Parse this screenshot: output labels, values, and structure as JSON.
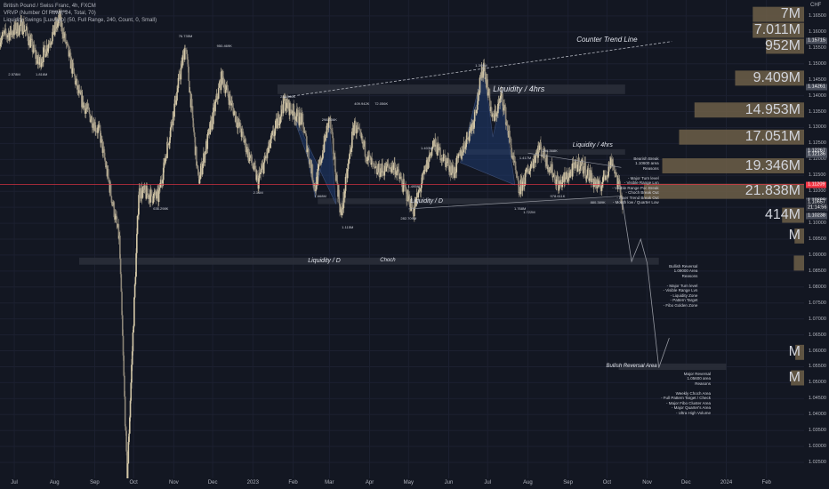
{
  "legend": {
    "title": "British Pound / Swiss Franc, 4h, FXCM",
    "indicator1": "VRVP (Number Of Rows, 24, Total, 70)",
    "indicator2": "Liquidity Swings [LuxAlgo] (50, Full Range, 240, Count, 0, Small)"
  },
  "axis": {
    "currency": "CHF",
    "ytick_labels": [
      "1.16500",
      "1.16000",
      "1.15500",
      "1.15000",
      "1.14500",
      "1.14000",
      "1.13500",
      "1.13000",
      "1.12500",
      "1.12000",
      "1.11500",
      "1.11000",
      "1.10500",
      "1.10000",
      "1.09500",
      "1.09000",
      "1.08500",
      "1.08000",
      "1.07500",
      "1.07000",
      "1.06500",
      "1.06000",
      "1.05500",
      "1.05000",
      "1.04500",
      "1.04000",
      "1.03500",
      "1.03000",
      "1.02500"
    ],
    "xtick_labels": [
      "Jul",
      "Aug",
      "Sep",
      "Oct",
      "Nov",
      "Dec",
      "2023",
      "Feb",
      "Mar",
      "Apr",
      "May",
      "Jun",
      "Jul",
      "Aug",
      "Sep",
      "Oct",
      "Nov",
      "Dec",
      "2024",
      "Feb"
    ],
    "badges": [
      {
        "text": "1.15715",
        "color": "#4a4f5c",
        "price": 1.15715
      },
      {
        "text": "1.14261",
        "color": "#4a4f5c",
        "price": 1.14261
      },
      {
        "text": "1.12267",
        "color": "#4a4f5c",
        "price": 1.12267
      },
      {
        "text": "1.12136",
        "color": "#4a4f5c",
        "price": 1.12136
      },
      {
        "text": "1.11209",
        "color": "#f23645",
        "price": 1.11209
      },
      {
        "text": "1.10690",
        "color": "#4a4f5c",
        "price": 1.1069
      },
      {
        "text": "1.10657",
        "color": "#2a2e39",
        "price": 1.10657
      },
      {
        "text": "21:14:56",
        "color": "#2a2e39",
        "price": 1.1048
      },
      {
        "text": "1.10238",
        "color": "#4a4f5c",
        "price": 1.10238
      }
    ]
  },
  "chart_data": {
    "type": "candlestick",
    "symbol": "GBPCHF",
    "timeframe": "4h",
    "ylim": [
      1.02,
      1.17
    ],
    "x_range": [
      "2022-06-20",
      "2024-03-01"
    ],
    "x_month_starts": [
      "2022-07-01",
      "2022-08-01",
      "2022-09-01",
      "2022-10-01",
      "2022-11-01",
      "2022-12-01",
      "2023-01-01",
      "2023-02-01",
      "2023-03-01",
      "2023-04-01",
      "2023-05-01",
      "2023-06-01",
      "2023-07-01",
      "2023-08-01",
      "2023-09-01",
      "2023-10-01",
      "2023-11-01",
      "2023-12-01",
      "2024-01-01",
      "2024-02-01"
    ],
    "price_path": [
      {
        "t": "2022-06-20",
        "p": 1.158
      },
      {
        "t": "2022-07-08",
        "p": 1.162
      },
      {
        "t": "2022-07-20",
        "p": 1.15
      },
      {
        "t": "2022-08-05",
        "p": 1.164
      },
      {
        "t": "2022-08-20",
        "p": 1.14
      },
      {
        "t": "2022-09-05",
        "p": 1.128
      },
      {
        "t": "2022-09-20",
        "p": 1.095
      },
      {
        "t": "2022-09-26",
        "p": 1.02
      },
      {
        "t": "2022-10-05",
        "p": 1.11
      },
      {
        "t": "2022-10-20",
        "p": 1.108
      },
      {
        "t": "2022-11-10",
        "p": 1.156
      },
      {
        "t": "2022-11-20",
        "p": 1.113
      },
      {
        "t": "2022-12-08",
        "p": 1.146
      },
      {
        "t": "2022-12-20",
        "p": 1.132
      },
      {
        "t": "2023-01-05",
        "p": 1.113
      },
      {
        "t": "2023-01-25",
        "p": 1.138
      },
      {
        "t": "2023-02-08",
        "p": 1.132
      },
      {
        "t": "2023-02-18",
        "p": 1.111
      },
      {
        "t": "2023-03-01",
        "p": 1.133
      },
      {
        "t": "2023-03-10",
        "p": 1.102
      },
      {
        "t": "2023-03-20",
        "p": 1.131
      },
      {
        "t": "2023-04-05",
        "p": 1.116
      },
      {
        "t": "2023-04-20",
        "p": 1.118
      },
      {
        "t": "2023-05-05",
        "p": 1.104
      },
      {
        "t": "2023-05-20",
        "p": 1.125
      },
      {
        "t": "2023-06-05",
        "p": 1.116
      },
      {
        "t": "2023-06-20",
        "p": 1.132
      },
      {
        "t": "2023-06-28",
        "p": 1.15
      },
      {
        "t": "2023-07-05",
        "p": 1.132
      },
      {
        "t": "2023-07-12",
        "p": 1.14
      },
      {
        "t": "2023-07-25",
        "p": 1.11
      },
      {
        "t": "2023-08-10",
        "p": 1.124
      },
      {
        "t": "2023-08-25",
        "p": 1.112
      },
      {
        "t": "2023-09-10",
        "p": 1.119
      },
      {
        "t": "2023-09-25",
        "p": 1.111
      },
      {
        "t": "2023-10-05",
        "p": 1.12
      },
      {
        "t": "2023-10-13",
        "p": 1.1066
      }
    ],
    "current_price": 1.10657,
    "volume_profile": [
      {
        "label": "7M",
        "price": 1.1655
      },
      {
        "label": "7.011M",
        "price": 1.1605
      },
      {
        "label": "952M",
        "price": 1.1555
      },
      {
        "label": "9.409M",
        "price": 1.1455
      },
      {
        "label": "14.953M",
        "price": 1.1355
      },
      {
        "label": "17.051M",
        "price": 1.127
      },
      {
        "label": "19.346M",
        "price": 1.118
      },
      {
        "label": "21.838M",
        "price": 1.11
      },
      {
        "label": "414M",
        "price": 1.1025
      },
      {
        "label": "M",
        "price": 1.096
      },
      {
        "label": "M",
        "price": 1.0595
      },
      {
        "label": "M",
        "price": 1.0515
      }
    ],
    "pivot_labels": [
      {
        "text": "649.685K",
        "t": "2022-08-05",
        "p": 1.1665
      },
      {
        "text": "2.578M",
        "t": "2022-07-01",
        "p": 1.1465
      },
      {
        "text": "1.816M",
        "t": "2022-07-22",
        "p": 1.1465
      },
      {
        "text": "76.735M",
        "t": "2022-11-10",
        "p": 1.1585
      },
      {
        "text": "950.469K",
        "t": "2022-12-10",
        "p": 1.1555
      },
      {
        "text": "636.298K",
        "t": "2022-10-22",
        "p": 1.1045
      },
      {
        "text": "2.16M",
        "t": "2023-01-05",
        "p": 1.1095
      },
      {
        "text": "232.966K",
        "t": "2023-01-28",
        "p": 1.1395
      },
      {
        "text": "298.506K",
        "t": "2023-03-01",
        "p": 1.1325
      },
      {
        "text": "409.942K",
        "t": "2023-03-26",
        "p": 1.1375
      },
      {
        "text": "72.056K",
        "t": "2023-04-10",
        "p": 1.1375
      },
      {
        "text": "1.668M",
        "t": "2023-02-22",
        "p": 1.1085
      },
      {
        "text": "1.115M",
        "t": "2023-03-15",
        "p": 1.0985
      },
      {
        "text": "1.495M",
        "t": "2023-05-05",
        "p": 1.1115
      },
      {
        "text": "1.403M",
        "t": "2023-05-15",
        "p": 1.1235
      },
      {
        "text": "282.709M",
        "t": "2023-05-01",
        "p": 1.1015
      },
      {
        "text": "1.399M",
        "t": "2023-06-26",
        "p": 1.1495
      },
      {
        "text": "1.417M",
        "t": "2023-07-30",
        "p": 1.1205
      },
      {
        "text": "296.368K",
        "t": "2023-08-18",
        "p": 1.1225
      },
      {
        "text": "978.611K",
        "t": "2023-08-24",
        "p": 1.1085
      },
      {
        "text": "1.722M",
        "t": "2023-08-02",
        "p": 1.1035
      },
      {
        "text": "1.768M",
        "t": "2023-07-26",
        "p": 1.1045
      },
      {
        "text": "880.389K",
        "t": "2023-09-24",
        "p": 1.1065
      }
    ],
    "annotations": [
      {
        "text": "Counter Trend Line",
        "t": "2023-10-01",
        "p": 1.1575,
        "size": 8
      },
      {
        "text": "Liquidity / 4hrs",
        "t": "2023-07-25",
        "p": 1.142,
        "size": 9
      },
      {
        "text": "Liquidity / 4hrs",
        "t": "2023-09-20",
        "p": 1.124,
        "size": 7
      },
      {
        "text": "Liquidity / D",
        "t": "2023-05-15",
        "p": 1.1065,
        "size": 7
      },
      {
        "text": "Liquidity / D",
        "t": "2023-02-25",
        "p": 1.088,
        "size": 7
      },
      {
        "text": "Choch",
        "t": "2023-04-15",
        "p": 1.088,
        "size": 6
      },
      {
        "text": "Bullish Reversal Area",
        "t": "2023-10-20",
        "p": 1.0548,
        "size": 6
      }
    ],
    "notes": [
      {
        "t": "2023-11-10",
        "p": 1.121,
        "lines": [
          "Bearish Break",
          "1.10600 area",
          "Reasons",
          "",
          "- Major Turn level",
          "- Visible Range Lvn",
          "- Visible Range Poc Break",
          "- Choch Break Out",
          "- Inner Trend Break Out",
          "- Month low / Quarter Low"
        ]
      },
      {
        "t": "2023-12-10",
        "p": 1.0872,
        "lines": [
          "Bullish Reversal",
          "1.09000 Area",
          "Reasons",
          "",
          "- Major Turn level",
          "- Visible Range Lvn",
          "- Liquidity Zone",
          "- Pattern Target",
          "- Fibo Golden Zone"
        ]
      },
      {
        "t": "2023-12-20",
        "p": 1.0535,
        "lines": [
          "Major Reversal",
          "1.05600 area",
          "Reasons",
          "",
          "Weekly Choch Area",
          "- Full Pattern Target / Check",
          "- Major Fibo Cluster Area",
          "- Major Quarter's Area",
          "- Ultra High Volume"
        ]
      }
    ],
    "pattern_boxes": [
      "A",
      "B",
      "C",
      "D",
      "X",
      "A",
      "B",
      "C",
      "D"
    ],
    "colors": {
      "background": "#131722",
      "candle_up": "#d4c8a8",
      "candle_down": "#8c8577",
      "volume_profile": "#6d5f48",
      "current_price_line": "#f23645",
      "pattern_fill": "#1e3a6e",
      "zone_fill": "#2a2e39"
    }
  }
}
